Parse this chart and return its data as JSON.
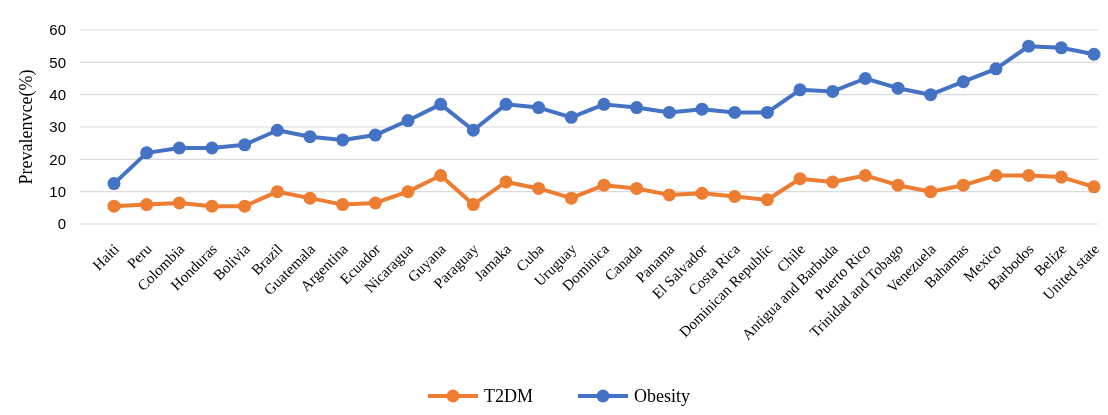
{
  "chart_data": {
    "type": "line",
    "ylabel": "Prevalenvce(%)",
    "categories": [
      "Haiti",
      "Peru",
      "Colombia",
      "Honduras",
      "Bolivia",
      "Brazil",
      "Guatemala",
      "Argentina",
      "Ecuador",
      "Nicaragua",
      "Guyana",
      "Paraguay",
      "Jamaka",
      "Cuba",
      "Uruguay",
      "Dominica",
      "Canada",
      "Panama",
      "El Salvador",
      "Costa Rica",
      "Dominican Republic",
      "Chile",
      "Antigua and Barbuda",
      "Puerto Rico",
      "Trinidad and Tobago",
      "Venezuela",
      "Bahamas",
      "Mexico",
      "Barbodos",
      "Belize",
      "United state"
    ],
    "series": [
      {
        "name": "T2DM",
        "color": "#ed7d31",
        "values": [
          5.5,
          6,
          6.5,
          5.5,
          5.5,
          10,
          8,
          6,
          6.5,
          10,
          15,
          6,
          13,
          11,
          8,
          12,
          11,
          9,
          9.5,
          8.5,
          7.5,
          14,
          13,
          15,
          12,
          10,
          12,
          15,
          15,
          14.5,
          11.5
        ]
      },
      {
        "name": "Obesity",
        "color": "#4472c4",
        "values": [
          12.5,
          22,
          23.5,
          23.5,
          24.5,
          29,
          27,
          26,
          27.5,
          32,
          37,
          29,
          37,
          36,
          33,
          37,
          36,
          34.5,
          35.5,
          34.5,
          34.5,
          41.5,
          41,
          45,
          42,
          40,
          44,
          48,
          55,
          54.5,
          52.5
        ]
      }
    ],
    "ylim": [
      0,
      60
    ],
    "yticks": [
      0,
      10,
      20,
      30,
      40,
      50,
      60
    ],
    "grid": "y",
    "legend": "bottom",
    "marker": "circle",
    "line_style": "solid"
  }
}
